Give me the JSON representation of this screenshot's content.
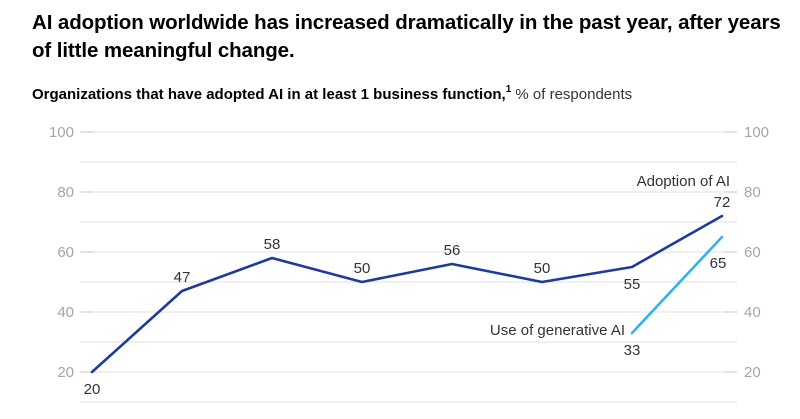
{
  "header": {
    "title": "AI adoption worldwide has increased dramatically in the past year, after years of little meaningful change.",
    "subtitle_bold": "Organizations that have adopted AI in at least 1 business function,",
    "subtitle_sup": "1",
    "subtitle_rest": " % of respondents"
  },
  "chart_data": {
    "type": "line",
    "title": "Organizations that have adopted AI in at least 1 business function, % of respondents",
    "xlabel": "",
    "ylabel": "% of respondents",
    "ylim": [
      10,
      100
    ],
    "yticks_labeled": [
      20,
      40,
      60,
      80,
      100
    ],
    "gridline_step": 10,
    "grid": true,
    "legend_position": "inline-line-end-labels",
    "axis_sides": [
      "left",
      "right"
    ],
    "series": [
      {
        "name": "Adoption of AI",
        "color": "#1e3a9c",
        "start_slot": 0,
        "values": [
          20,
          47,
          58,
          50,
          56,
          50,
          55,
          72
        ],
        "label_positions": [
          "below",
          "above",
          "above",
          "above",
          "above",
          "above",
          "below",
          "above"
        ],
        "name_label_anchor": "end-of-line-above"
      },
      {
        "name": "Use of generative AI",
        "color": "#33b3ea",
        "start_slot": 6,
        "values": [
          33,
          65
        ],
        "label_positions": [
          "below",
          "below-far"
        ],
        "name_label_anchor": "start-of-line-left"
      }
    ],
    "axis_label_color": "#a5a5a5",
    "gridline_color": "#e2e2e2",
    "tick_color": "#c4c4c4",
    "data_label_color": "#333333"
  }
}
